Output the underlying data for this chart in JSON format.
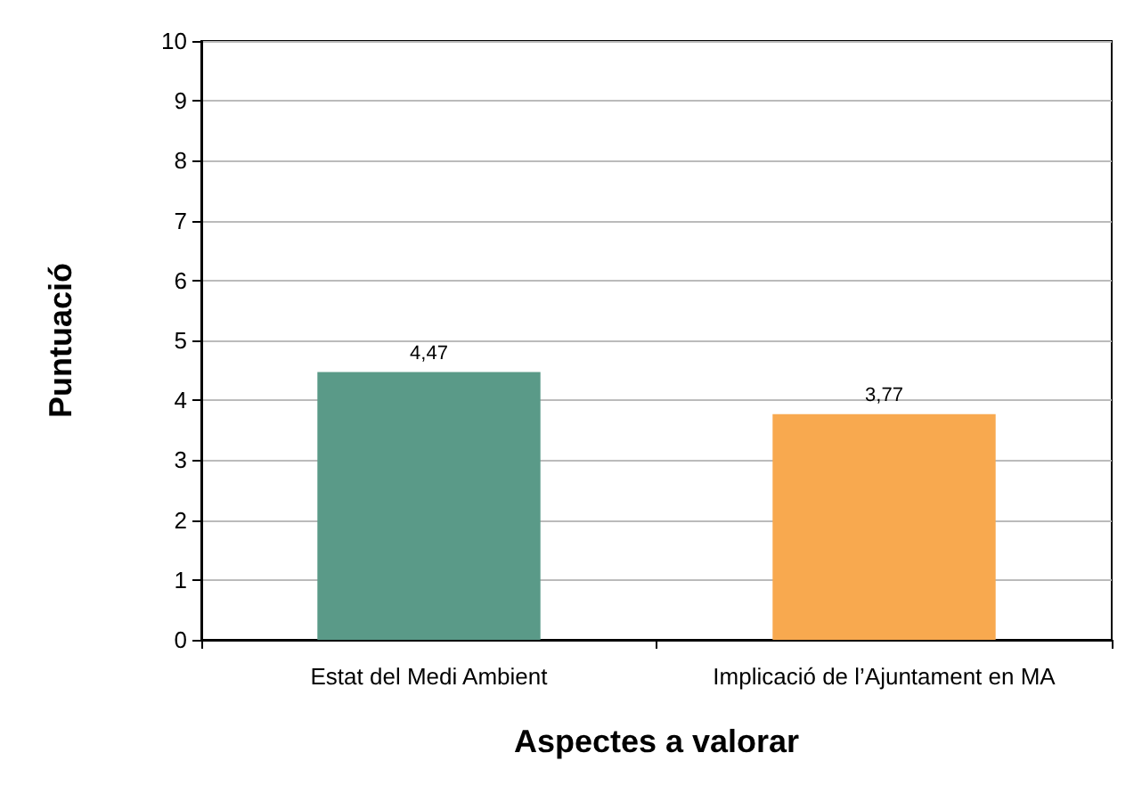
{
  "chart_data": {
    "type": "bar",
    "xlabel": "Aspectes a valorar",
    "ylabel": "Puntuació",
    "categories": [
      "Estat del Medi Ambient",
      "Implicació de l’Ajuntament en MA"
    ],
    "values": [
      4.47,
      3.77
    ],
    "colors": [
      "#5a9a88",
      "#f8a94f"
    ],
    "value_labels": [
      "4,47",
      "3,77"
    ],
    "ylim": [
      0,
      10
    ],
    "yticks": [
      0,
      1,
      2,
      3,
      4,
      5,
      6,
      7,
      8,
      9,
      10
    ],
    "grid": "y"
  }
}
